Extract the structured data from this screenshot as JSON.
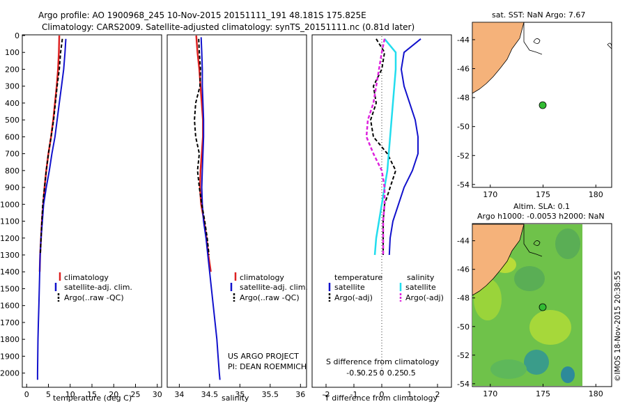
{
  "header": {
    "line1": "Argo profile: AO 1900968_245 10-Nov-2015 20151111_191 48.181S 175.825E",
    "line2": "Climatology: CARS2009. Satellite-adjusted climatology: synTS_20151111.nc (0.81d later)"
  },
  "colors": {
    "climatology": "#dd2222",
    "satellite": "#1111cc",
    "argo": "#000000",
    "sal_satellite": "#22ddee",
    "sal_argo": "#dd22dd",
    "land": "#f5b27a",
    "float_marker": "#33bb33"
  },
  "panels": {
    "temperature": {
      "xlabel": "temperature (deg C)"
    },
    "salinity": {
      "xlabel": "salinity",
      "note1": "US ARGO PROJECT",
      "note2": "PI: DEAN ROEMMICH"
    },
    "difference": {
      "top_label": "S difference from climatology",
      "xlabel": "T difference from climatology"
    }
  },
  "legends": {
    "climatology": "climatology",
    "satellite_adj": "satellite-adj. clim.",
    "argo_raw": "Argo(..raw -QC)",
    "temperature": "temperature",
    "salinity": "salinity",
    "satellite": "satellite",
    "argo_adj": "Argo(-adj)"
  },
  "maps": {
    "sst_title": "sat. SST: NaN Argo: 7.67",
    "sla_title1": "Altim. SLA: 0.1",
    "sla_title2": "Argo h1000: -0.0053 h2000: NaN",
    "lon_ticks": [
      "170",
      "175",
      "180"
    ],
    "lat_ticks": [
      "-44",
      "-46",
      "-48",
      "-50",
      "-52",
      "-54"
    ],
    "float_position": {
      "lon": 175.825,
      "lat": -48.181
    },
    "timestamp": "©IMOS 18-Nov-2015 20:38:55"
  },
  "chart_data": [
    {
      "type": "line",
      "id": "temperature-profile",
      "xlabel": "temperature (deg C)",
      "ylabel": "",
      "xlim": [
        -1,
        31
      ],
      "ylim": [
        2080,
        0
      ],
      "y_ticks": [
        0,
        100,
        200,
        300,
        400,
        500,
        600,
        700,
        800,
        900,
        1000,
        1100,
        1200,
        1300,
        1400,
        1500,
        1600,
        1700,
        1800,
        1900,
        2000
      ],
      "x_ticks": [
        0,
        5,
        10,
        15,
        20,
        25,
        30
      ],
      "series": [
        {
          "name": "climatology",
          "x": [
            7.5,
            7.4,
            7.2,
            6.9,
            6.5,
            6.1,
            5.6,
            5.0,
            4.5,
            4.1,
            3.8,
            3.5,
            3.3,
            3.1,
            3.0
          ],
          "y": [
            0,
            100,
            200,
            300,
            400,
            500,
            600,
            700,
            800,
            900,
            1000,
            1100,
            1200,
            1300,
            1400
          ]
        },
        {
          "name": "satellite-adj. clim.",
          "x": [
            9.0,
            8.8,
            8.5,
            8.0,
            7.5,
            7.0,
            6.5,
            5.8,
            5.2,
            4.5,
            3.9,
            3.6,
            3.3,
            3.1,
            3.0,
            2.9,
            2.8,
            2.7,
            2.6,
            2.55,
            2.5,
            2.5
          ],
          "y": [
            20,
            100,
            200,
            300,
            400,
            500,
            600,
            700,
            800,
            900,
            1000,
            1100,
            1200,
            1300,
            1400,
            1500,
            1600,
            1700,
            1800,
            1900,
            2000,
            2040
          ]
        },
        {
          "name": "Argo(..raw -QC)",
          "x": [
            8.2,
            7.8,
            7.5,
            7.0,
            6.6,
            6.2,
            5.6,
            5.0,
            4.5,
            4.1,
            3.7,
            3.5,
            3.3,
            3.15
          ],
          "y": [
            20,
            100,
            200,
            300,
            400,
            500,
            600,
            700,
            800,
            900,
            1000,
            1100,
            1200,
            1300
          ]
        }
      ]
    },
    {
      "type": "line",
      "id": "salinity-profile",
      "xlabel": "salinity",
      "ylabel": "",
      "xlim": [
        33.8,
        36.1
      ],
      "ylim": [
        2080,
        0
      ],
      "x_ticks": [
        34,
        34.5,
        35,
        35.5,
        36
      ],
      "series": [
        {
          "name": "climatology",
          "x": [
            34.28,
            34.3,
            34.33,
            34.35,
            34.37,
            34.39,
            34.39,
            34.37,
            34.35,
            34.34,
            34.36,
            34.41,
            34.45,
            34.48,
            34.52
          ],
          "y": [
            0,
            100,
            200,
            300,
            400,
            500,
            600,
            700,
            800,
            900,
            1000,
            1100,
            1200,
            1300,
            1400
          ]
        },
        {
          "name": "satellite-adj. clim.",
          "x": [
            34.36,
            34.37,
            34.38,
            34.38,
            34.39,
            34.4,
            34.4,
            34.39,
            34.38,
            34.37,
            34.38,
            34.4,
            34.44,
            34.47,
            34.5,
            34.53,
            34.56,
            34.59,
            34.62,
            34.64,
            34.66,
            34.67
          ],
          "y": [
            10,
            100,
            200,
            300,
            400,
            500,
            600,
            700,
            800,
            900,
            1000,
            1100,
            1200,
            1300,
            1400,
            1500,
            1600,
            1700,
            1800,
            1900,
            2000,
            2040
          ]
        },
        {
          "name": "Argo(..raw -QC)",
          "x": [
            34.32,
            34.33,
            34.35,
            34.34,
            34.27,
            34.25,
            34.27,
            34.33,
            34.3,
            34.33,
            34.37,
            34.42,
            34.46,
            34.49
          ],
          "y": [
            20,
            100,
            200,
            300,
            400,
            500,
            600,
            700,
            800,
            900,
            1000,
            1100,
            1200,
            1300
          ]
        }
      ]
    },
    {
      "type": "line",
      "id": "difference-profile",
      "xlabel": "T difference from climatology",
      "top_label": "S difference from climatology",
      "xlim": [
        -2.5,
        2.5
      ],
      "ylim": [
        2080,
        0
      ],
      "x_ticks": [
        -2,
        -1,
        0,
        1,
        2
      ],
      "top_ticks": [
        "-0.5",
        "-0.25",
        "0",
        "0.25",
        "0.5"
      ],
      "series": [
        {
          "name": "T satellite",
          "x": [
            1.4,
            0.8,
            0.7,
            0.8,
            1.0,
            1.2,
            1.3,
            1.3,
            1.1,
            0.8,
            0.6,
            0.4,
            0.3,
            0.27
          ],
          "y": [
            20,
            100,
            200,
            300,
            400,
            500,
            600,
            700,
            800,
            900,
            1000,
            1100,
            1200,
            1300
          ]
        },
        {
          "name": "T Argo(-adj)",
          "x": [
            -0.2,
            0.1,
            0.0,
            -0.3,
            -0.2,
            -0.4,
            -0.3,
            0.2,
            0.5,
            0.3,
            0.1,
            0.05,
            0.05,
            0.05
          ],
          "y": [
            20,
            100,
            200,
            300,
            400,
            500,
            600,
            700,
            800,
            900,
            1000,
            1100,
            1200,
            1300
          ]
        },
        {
          "name": "S satellite",
          "x": [
            0.1,
            0.5,
            0.5,
            0.45,
            0.4,
            0.35,
            0.3,
            0.25,
            0.2,
            0.1,
            0.0,
            -0.1,
            -0.2,
            -0.25
          ],
          "y": [
            20,
            100,
            200,
            300,
            400,
            500,
            600,
            700,
            800,
            900,
            1000,
            1100,
            1200,
            1300
          ]
        },
        {
          "name": "S Argo(-adj)",
          "x": [
            0.1,
            0.0,
            -0.1,
            -0.2,
            -0.3,
            -0.5,
            -0.55,
            -0.3,
            0.0,
            0.1,
            0.1,
            0.05,
            0.05,
            0.05
          ],
          "y": [
            20,
            100,
            200,
            300,
            400,
            500,
            600,
            700,
            800,
            900,
            1000,
            1100,
            1200,
            1300
          ]
        }
      ]
    }
  ]
}
